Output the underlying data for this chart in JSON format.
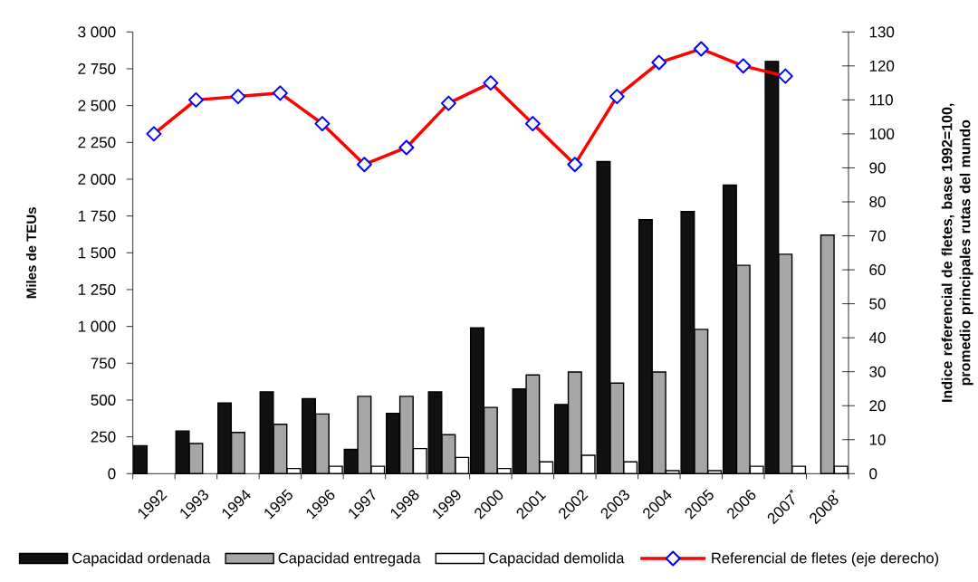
{
  "chart_data": {
    "type": "bar",
    "categories": [
      "1992",
      "1993",
      "1994",
      "1995",
      "1996",
      "1997",
      "1998",
      "1999",
      "2000",
      "2001",
      "2002",
      "2003",
      "2004",
      "2005",
      "2006",
      "2007$^{*}$",
      "2008$^{*}$"
    ],
    "series": [
      {
        "name": "Capacidad ordenada",
        "color": "#111111",
        "values": [
          190,
          290,
          480,
          555,
          510,
          165,
          410,
          555,
          990,
          575,
          470,
          2120,
          1725,
          1780,
          1960,
          2800,
          null
        ]
      },
      {
        "name": "Capacidad entregada",
        "color": "#a6a6a6",
        "values": [
          null,
          205,
          280,
          335,
          405,
          525,
          525,
          265,
          450,
          670,
          690,
          615,
          690,
          980,
          1415,
          1490,
          1620
        ]
      },
      {
        "name": "Capacidad demolida",
        "color": "#ffffff",
        "values": [
          null,
          null,
          null,
          35,
          50,
          50,
          170,
          110,
          35,
          80,
          125,
          80,
          20,
          20,
          50,
          50,
          50
        ]
      },
      {
        "name": "Referencial de fletes (eje derecho)",
        "type": "line",
        "axis": "y2",
        "color": "#ff0000",
        "marker": "diamond",
        "values": [
          100,
          110,
          111,
          112,
          103,
          91,
          96,
          109,
          115,
          103,
          91,
          111,
          121,
          125,
          120,
          117,
          null
        ]
      }
    ],
    "ylabel": "Miles de TEUs",
    "y2label": "Indice referencial de fletes, base 1992=100, promedio principales rutas del mundo",
    "ylim": [
      0,
      3000
    ],
    "yticks": [
      0,
      250,
      500,
      750,
      {
        "value": 1000,
        "label": "1 000"
      },
      {
        "value": 1250,
        "label": "1 250"
      },
      {
        "value": 1500,
        "label": "1 500"
      },
      {
        "value": 1750,
        "label": "1 750"
      },
      {
        "value": 2000,
        "label": "2 000"
      },
      {
        "value": 2250,
        "label": "2 250"
      },
      {
        "value": 2500,
        "label": "2 500"
      },
      {
        "value": 2750,
        "label": "2 750"
      },
      {
        "value": 3000,
        "label": "3 000"
      }
    ],
    "y2lim": [
      0,
      130
    ],
    "y2ticks": [
      0,
      10,
      20,
      30,
      40,
      50,
      60,
      70,
      80,
      90,
      100,
      110,
      120,
      130
    ],
    "legend": "bottom"
  }
}
